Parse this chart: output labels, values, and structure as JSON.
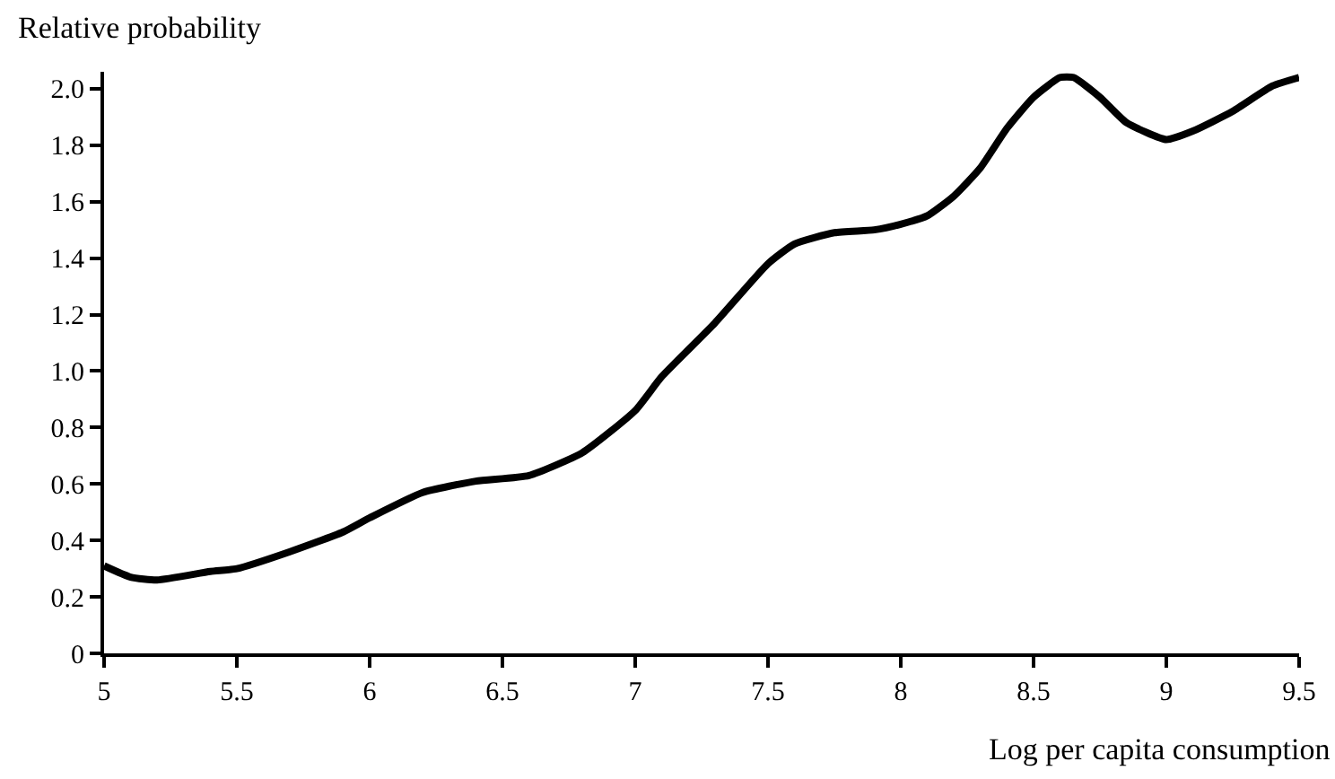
{
  "chart_data": {
    "type": "line",
    "xlabel": "Log per capita consumption",
    "ylabel": "Relative probability",
    "x": [
      5,
      5.1,
      5.2,
      5.4,
      5.5,
      5.7,
      5.9,
      6,
      6.2,
      6.4,
      6.6,
      6.8,
      7,
      7.1,
      7.3,
      7.5,
      7.6,
      7.75,
      7.9,
      8,
      8.1,
      8.2,
      8.3,
      8.4,
      8.5,
      8.6,
      8.65,
      8.75,
      8.85,
      9,
      9.1,
      9.25,
      9.4,
      9.5
    ],
    "series": [
      {
        "color": "#000000",
        "values": [
          0.31,
          0.27,
          0.26,
          0.29,
          0.3,
          0.36,
          0.43,
          0.48,
          0.57,
          0.61,
          0.63,
          0.71,
          0.86,
          0.98,
          1.17,
          1.38,
          1.45,
          1.49,
          1.5,
          1.52,
          1.55,
          1.62,
          1.72,
          1.86,
          1.97,
          2.04,
          2.04,
          1.97,
          1.88,
          1.82,
          1.85,
          1.92,
          2.01,
          2.04
        ]
      }
    ],
    "xlim": [
      5,
      9.5
    ],
    "xticks": [
      5,
      5.5,
      6,
      6.5,
      7,
      7.5,
      8,
      8.5,
      9,
      9.5
    ],
    "ylim": [
      0,
      2.06
    ],
    "yticks": [
      0,
      0.2,
      0.4,
      0.6,
      0.8,
      {
        "value": 1,
        "label": "1.0"
      },
      1.2,
      1.4,
      1.6,
      1.8,
      {
        "value": 2,
        "label": "2.0"
      }
    ],
    "marker": "none",
    "line_style": "solid"
  }
}
